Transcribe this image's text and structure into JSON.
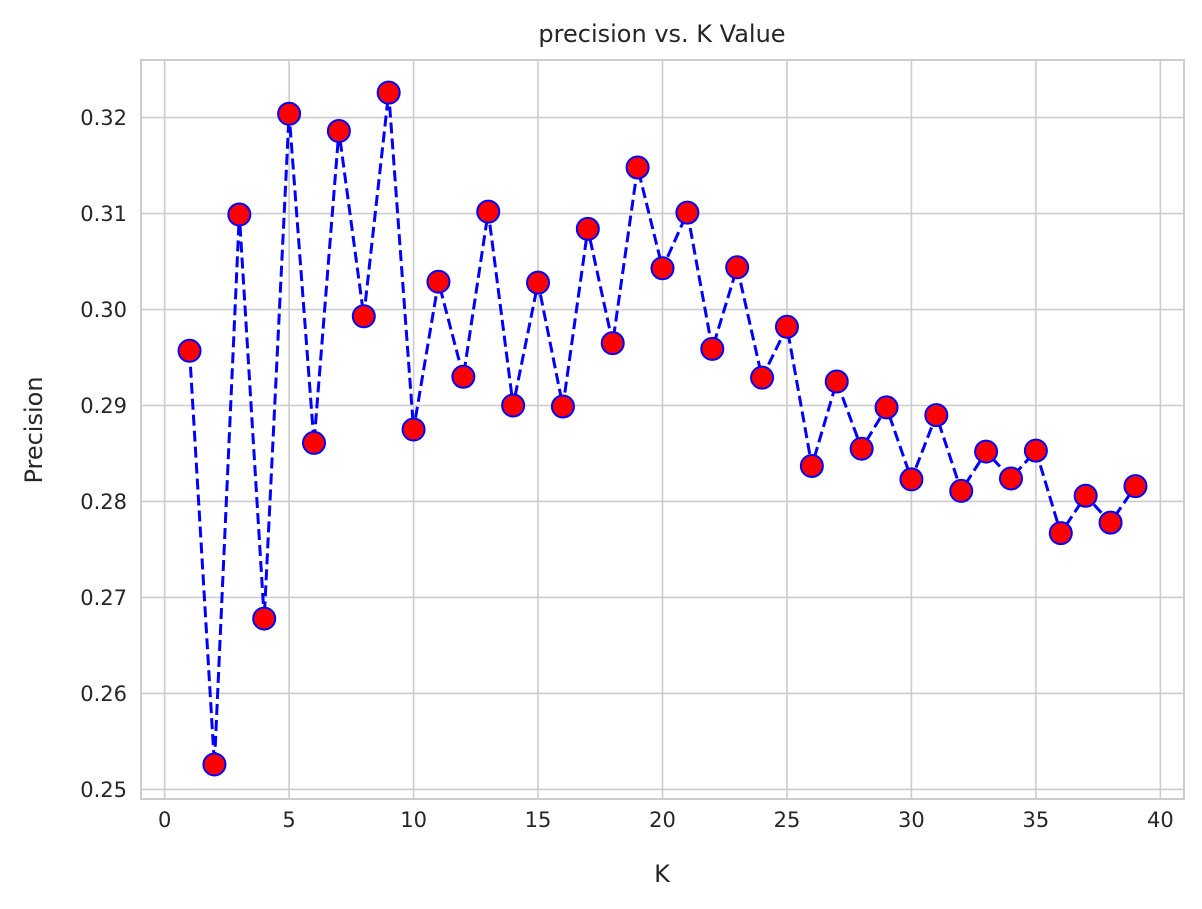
{
  "chart_data": {
    "type": "line",
    "title": "precision vs. K Value",
    "xlabel": "K",
    "ylabel": "Precision",
    "xlim": [
      -0.95,
      40.95
    ],
    "ylim": [
      0.249,
      0.326
    ],
    "xticks": [
      0,
      5,
      10,
      15,
      20,
      25,
      30,
      35,
      40
    ],
    "xtick_labels": [
      "0",
      "5",
      "10",
      "15",
      "20",
      "25",
      "30",
      "35",
      "40"
    ],
    "yticks": [
      0.25,
      0.26,
      0.27,
      0.28,
      0.29,
      0.3,
      0.31,
      0.32
    ],
    "ytick_labels": [
      "0.25",
      "0.26",
      "0.27",
      "0.28",
      "0.29",
      "0.30",
      "0.31",
      "0.32"
    ],
    "grid": true,
    "series": [
      {
        "line_style": "dashed",
        "marker": "circle",
        "line_color": "#0000ff",
        "marker_face_color": "#ff0000",
        "marker_edge_color": "#0000ff",
        "x": [
          1,
          2,
          3,
          4,
          5,
          6,
          7,
          8,
          9,
          10,
          11,
          12,
          13,
          14,
          15,
          16,
          17,
          18,
          19,
          20,
          21,
          22,
          23,
          24,
          25,
          26,
          27,
          28,
          29,
          30,
          31,
          32,
          33,
          34,
          35,
          36,
          37,
          38,
          39
        ],
        "y": [
          0.2957,
          0.2526,
          0.3099,
          0.2678,
          0.3204,
          0.2861,
          0.3186,
          0.2993,
          0.3226,
          0.2875,
          0.3029,
          0.293,
          0.3102,
          0.29,
          0.3028,
          0.2899,
          0.3084,
          0.2965,
          0.3148,
          0.3043,
          0.3101,
          0.2959,
          0.3044,
          0.2929,
          0.2982,
          0.2837,
          0.2925,
          0.2855,
          0.2898,
          0.2823,
          0.289,
          0.2811,
          0.2852,
          0.2824,
          0.2853,
          0.2767,
          0.2806,
          0.2778,
          0.2816
        ]
      }
    ]
  }
}
